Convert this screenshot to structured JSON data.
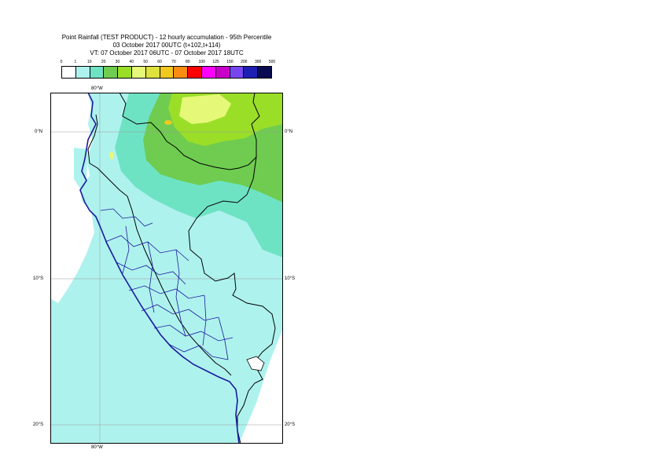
{
  "title": {
    "line1": "Point Rainfall (TEST PRODUCT) - 12 hourly accumulation - 95th Percentile",
    "line2": "03 October 2017 00UTC (t+102,t+114)",
    "line3": "VT: 07 October 2017 06UTC - 07 October 2017 18UTC"
  },
  "legend": {
    "thresholds": [
      "0",
      "1",
      "10",
      "20",
      "30",
      "40",
      "50",
      "60",
      "70",
      "80",
      "100",
      "125",
      "150",
      "200",
      "300",
      "500"
    ],
    "colors": [
      "#ffffff",
      "#aef2ee",
      "#6ee3c4",
      "#6fcc50",
      "#9ade28",
      "#e6f878",
      "#dee23c",
      "#f0c81e",
      "#fa8c14",
      "#ff0000",
      "#ff00ff",
      "#c800c8",
      "#7846f0",
      "#1e1eb4",
      "#0a0a50"
    ]
  },
  "axes": {
    "lon_top": "80°W",
    "lon_bottom": "80°W",
    "lat_0_left": "0°N",
    "lat_0_right": "0°N",
    "lat_10_left": "10°S",
    "lat_10_right": "10°S",
    "lat_20_left": "20°S",
    "lat_20_right": "20°S"
  },
  "map_colors": {
    "ocean": "#ffffff",
    "light": "#aef2ee",
    "mid": "#6ee3c4",
    "green": "#6fcc50",
    "lime": "#9ade28",
    "yellow": "#e6f878",
    "orange": "#f0c81e",
    "border": "#000000",
    "province": "#1a1a9c",
    "grid": "#9a9a9a"
  }
}
